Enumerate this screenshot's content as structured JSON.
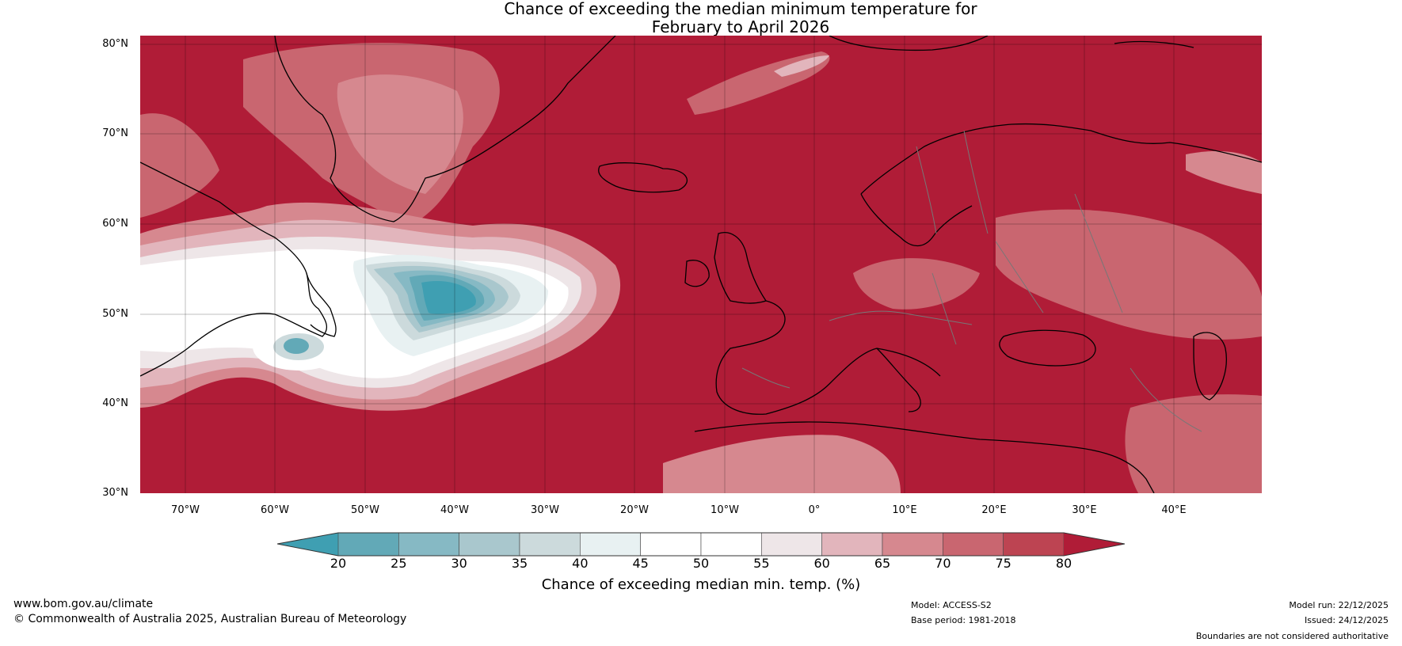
{
  "title": {
    "line1": "Chance of exceeding the median minimum temperature for",
    "line2": "February to April 2026"
  },
  "lat_labels": [
    "80°N",
    "70°N",
    "60°N",
    "50°N",
    "40°N",
    "30°N"
  ],
  "lon_labels": [
    "70°W",
    "60°W",
    "50°W",
    "40°W",
    "30°W",
    "20°W",
    "10°W",
    "0°",
    "10°E",
    "20°E",
    "30°E",
    "40°E"
  ],
  "colorbar": {
    "ticks": [
      "20",
      "25",
      "30",
      "35",
      "40",
      "45",
      "50",
      "55",
      "60",
      "65",
      "70",
      "75",
      "80"
    ],
    "label": "Chance of exceeding median min. temp. (%)",
    "colors": [
      "#3f9fb2",
      "#62a9b7",
      "#86b9c4",
      "#a9c7cd",
      "#ccdadc",
      "#e8f1f2",
      "#ffffff",
      "#ffffff",
      "#eee6e8",
      "#e2b5bc",
      "#d6888f",
      "#c96670",
      "#bd4452",
      "#b01c37"
    ]
  },
  "footer": {
    "website": "www.bom.gov.au/climate",
    "copyright": "© Commonwealth of Australia 2025, Australian Bureau of Meteorology",
    "model": "Model: ACCESS-S2",
    "base_period": "Base period: 1981-2018",
    "model_run": "Model run: 22/12/2025",
    "issued": "Issued: 24/12/2025",
    "disclaimer": "Boundaries are not considered authoritative"
  },
  "colors": {
    "high": "#b01c37",
    "mid_high": "#c96670",
    "light_red": "#e2b5bc",
    "white": "#ffffff",
    "light_blue": "#e8f1f2",
    "blue": "#3f9fb2"
  }
}
